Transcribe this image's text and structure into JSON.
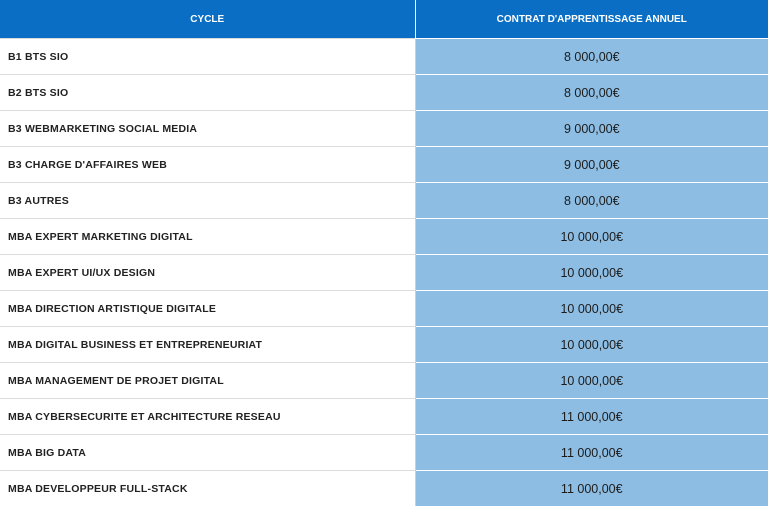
{
  "table": {
    "headers": {
      "cycle": "CYCLE",
      "contract": "CONTRAT D'APPRENTISSAGE ANNUEL"
    },
    "rows": [
      {
        "cycle": "B1 BTS SIO",
        "price": "8 000,00€"
      },
      {
        "cycle": "B2 BTS SIO",
        "price": "8 000,00€"
      },
      {
        "cycle": "B3 WEBMARKETING SOCIAL MEDIA",
        "price": "9 000,00€"
      },
      {
        "cycle": "B3 CHARGE D'AFFAIRES WEB",
        "price": "9 000,00€"
      },
      {
        "cycle": "B3 AUTRES",
        "price": "8 000,00€"
      },
      {
        "cycle": "MBA EXPERT MARKETING DIGITAL",
        "price": "10 000,00€"
      },
      {
        "cycle": "MBA EXPERT UI/UX DESIGN",
        "price": "10 000,00€"
      },
      {
        "cycle": "MBA DIRECTION ARTISTIQUE DIGITALE",
        "price": "10 000,00€"
      },
      {
        "cycle": "MBA DIGITAL BUSINESS ET ENTREPRENEURIAT",
        "price": "10 000,00€"
      },
      {
        "cycle": "MBA MANAGEMENT DE PROJET DIGITAL",
        "price": "10 000,00€"
      },
      {
        "cycle": "MBA CYBERSECURITE ET ARCHITECTURE RESEAU",
        "price": "11 000,00€"
      },
      {
        "cycle": "MBA BIG DATA",
        "price": "11 000,00€"
      },
      {
        "cycle": "MBA DEVELOPPEUR FULL-STACK",
        "price": "11 000,00€"
      }
    ]
  }
}
